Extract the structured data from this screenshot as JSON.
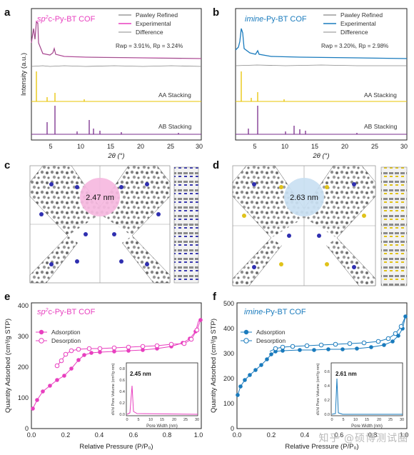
{
  "panels": {
    "a": {
      "letter": "a",
      "title_pre": "sp",
      "title_sup": "2",
      "title_post": "c-Py-BT COF",
      "legend": [
        "Pawley Refined",
        "Experimental",
        "Difference"
      ],
      "stats": "Rwp = 3.91%, Rp = 3.24%",
      "aa_label": "AA Stacking",
      "ab_label": "AB Stacking",
      "ylabel": "Intensity (a.u.)",
      "xlabel": "2θ (°)",
      "xticks": [
        "5",
        "10",
        "15",
        "20",
        "25",
        "30"
      ],
      "color": "#e83fbf"
    },
    "b": {
      "letter": "b",
      "title_pre": "imine",
      "title_post": "-Py-BT COF",
      "legend": [
        "Pawley Refined",
        "Experimental",
        "Difference"
      ],
      "stats": "Rwp = 3.20%, Rp = 2.98%",
      "aa_label": "AA Stacking",
      "ab_label": "AB Stacking",
      "xlabel": "2θ (°)",
      "xticks": [
        "5",
        "10",
        "15",
        "20",
        "25",
        "30"
      ],
      "color": "#1a7bbd"
    },
    "c": {
      "letter": "c",
      "pore": "2.47 nm",
      "pore_color": "#f6b9e0"
    },
    "d": {
      "letter": "d",
      "pore": "2.63 nm",
      "pore_color": "#c9dff2"
    },
    "e": {
      "letter": "e",
      "title_pre": "sp",
      "title_sup": "2",
      "title_post": "c-Py-BT COF",
      "legend": [
        "Adsorption",
        "Desorption"
      ],
      "ylabel": "Quantity Adsorbed (cm³/g STP)",
      "xlabel": "Relative Pressure (P/P₀)",
      "yticks": [
        "0",
        "100",
        "200",
        "300",
        "400"
      ],
      "xticks": [
        "0.0",
        "0.2",
        "0.4",
        "0.6",
        "0.8",
        "1.0"
      ],
      "inset_label": "2.45 nm",
      "inset_ylabel": "dV/d Pore Volume (cm³/g·nm)",
      "inset_xlabel": "Pore Width (nm)",
      "inset_yticks": [
        "0.0",
        "0.2",
        "0.4",
        "0.6",
        "0.8"
      ],
      "inset_xticks": [
        "0",
        "5",
        "10",
        "15",
        "20",
        "25",
        "30"
      ],
      "color": "#e83fbf"
    },
    "f": {
      "letter": "f",
      "title_pre": "imine",
      "title_post": "-Py-BT COF",
      "legend": [
        "Adsorption",
        "Desorption"
      ],
      "yticks": [
        "0",
        "100",
        "200",
        "300",
        "400",
        "500"
      ],
      "xticks": [
        "0.0",
        "0.2",
        "0.4",
        "0.6",
        "0.8",
        "1.0"
      ],
      "xlabel": "Relative Pressure (P/P₀)",
      "ylabel": "Quantity Adsorbed (cm³/g STP)",
      "inset_label": "2.61 nm",
      "inset_ylabel": "dV/d Pore Volume (cm³/g·nm)",
      "inset_xlabel": "Pore Width (nm)",
      "inset_yticks": [
        "0.0",
        "0.2",
        "0.4",
        "0.6"
      ],
      "inset_xticks": [
        "0",
        "5",
        "10",
        "15",
        "20",
        "25",
        "30"
      ],
      "color": "#1a7bbd"
    }
  },
  "watermark": "知乎 @硕博测试圈"
}
